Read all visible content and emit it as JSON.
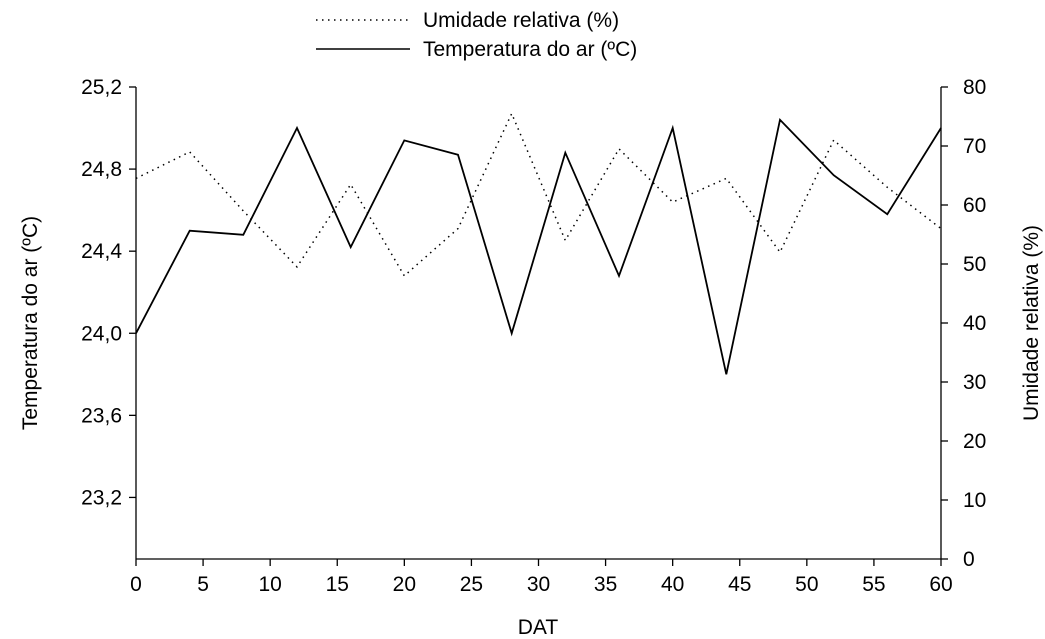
{
  "chart_data": {
    "type": "line",
    "xlabel": "DAT",
    "ylabel_left": "Temperatura do ar (ºC)",
    "ylabel_right": "Umidade relativa (%)",
    "xlim": [
      0,
      60
    ],
    "ylim_left": [
      22.9,
      25.2
    ],
    "ylim_right": [
      0,
      80
    ],
    "x_ticks": [
      "0",
      "5",
      "10",
      "15",
      "20",
      "25",
      "30",
      "35",
      "40",
      "45",
      "50",
      "55",
      "60"
    ],
    "y_left_ticks": [
      "23,2",
      "23,6",
      "24,0",
      "24,4",
      "24,8",
      "25,2"
    ],
    "y_right_ticks": [
      "0",
      "10",
      "20",
      "30",
      "40",
      "50",
      "60",
      "70",
      "80"
    ],
    "grid": false,
    "legend_position": "top-center",
    "x": [
      0,
      4,
      8,
      12,
      16,
      20,
      24,
      28,
      32,
      36,
      40,
      44,
      48,
      52,
      56,
      60
    ],
    "series": [
      {
        "name": "Umidade relativa (%)",
        "axis": "right",
        "style": "dotted",
        "values": [
          64.5,
          69,
          59,
          49.5,
          63.5,
          48,
          56,
          75.5,
          54,
          69.5,
          60.5,
          64.5,
          52,
          71,
          63,
          56
        ]
      },
      {
        "name": "Temperatura do ar (ºC)",
        "axis": "left",
        "style": "solid",
        "values": [
          24.0,
          24.5,
          24.48,
          25.0,
          24.42,
          24.94,
          24.87,
          24.0,
          24.88,
          24.28,
          25.0,
          23.8,
          25.04,
          24.77,
          24.58,
          25.0
        ]
      }
    ],
    "colors": {
      "line": "#000000",
      "background": "#ffffff"
    }
  }
}
